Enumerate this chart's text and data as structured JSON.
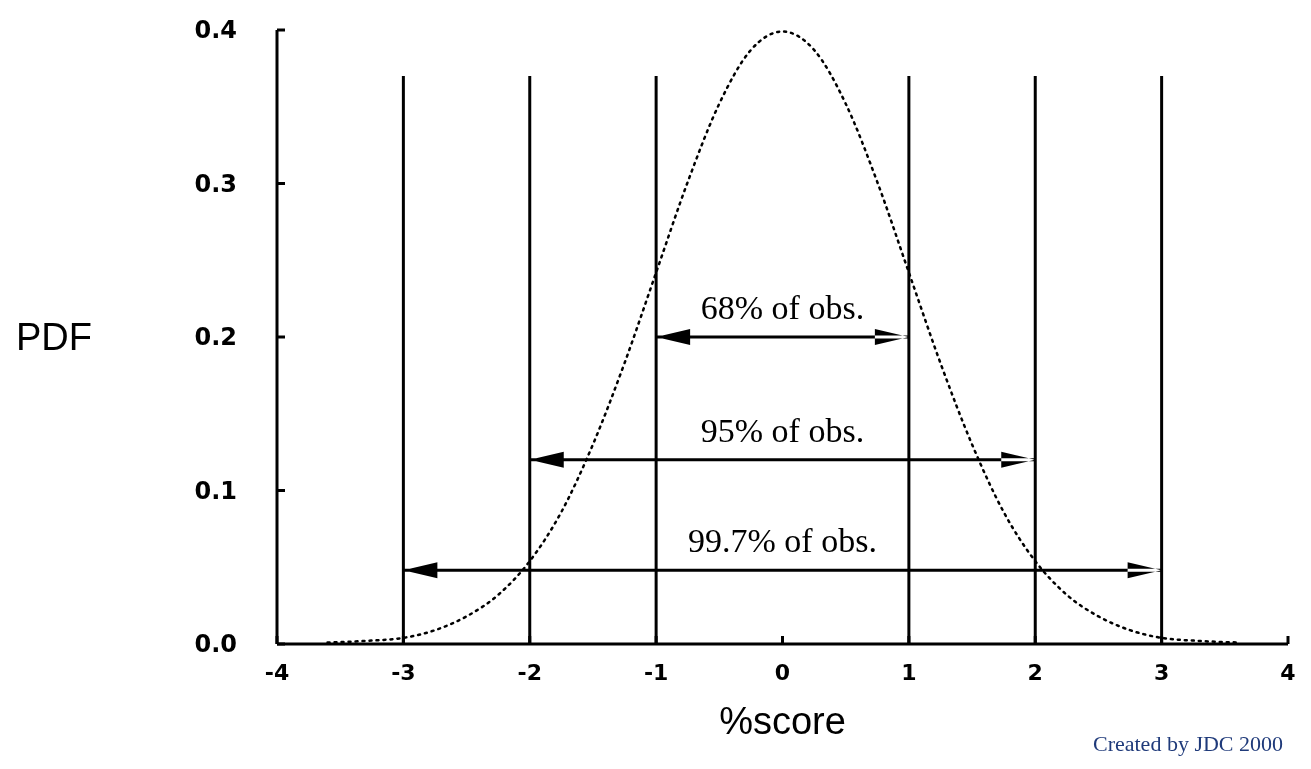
{
  "chart_data": {
    "type": "line",
    "xlabel": "%score",
    "ylabel": "PDF",
    "x": [
      -3.6,
      -3.3,
      -3,
      -2.75,
      -2.5,
      -2.25,
      -2,
      -1.75,
      -1.5,
      -1.25,
      -1,
      -0.75,
      -0.5,
      -0.25,
      0,
      0.25,
      0.5,
      0.75,
      1,
      1.25,
      1.5,
      1.75,
      2,
      2.25,
      2.5,
      2.75,
      3,
      3.3,
      3.6
    ],
    "series": [
      {
        "color": "#000000",
        "values": [
          0.001,
          0.002,
          0.004,
          0.009,
          0.018,
          0.032,
          0.054,
          0.086,
          0.13,
          0.183,
          0.242,
          0.301,
          0.352,
          0.387,
          0.399,
          0.387,
          0.352,
          0.301,
          0.242,
          0.183,
          0.13,
          0.086,
          0.054,
          0.032,
          0.018,
          0.009,
          0.004,
          0.002,
          0.001
        ]
      }
    ],
    "xlim": [
      -4,
      4
    ],
    "xticks": [
      -4,
      -3,
      -2,
      -1,
      0,
      1,
      2,
      3,
      4
    ],
    "ylim": [
      0,
      0.4
    ],
    "yticks": [
      {
        "value": 0,
        "label": "0.0"
      },
      0.1,
      0.2,
      0.3,
      0.4
    ],
    "ref_lines": [
      {
        "axis": "x",
        "value": -3
      },
      {
        "axis": "x",
        "value": -2
      },
      {
        "axis": "x",
        "value": -1
      },
      {
        "axis": "x",
        "value": 1
      },
      {
        "axis": "x",
        "value": 2
      },
      {
        "axis": "x",
        "value": 3
      }
    ],
    "annotations": [
      "68% of obs.",
      "95% of obs.",
      "99.7% of obs.",
      "Created by JDC 2000"
    ],
    "grid": false,
    "line_style": "dotted"
  }
}
